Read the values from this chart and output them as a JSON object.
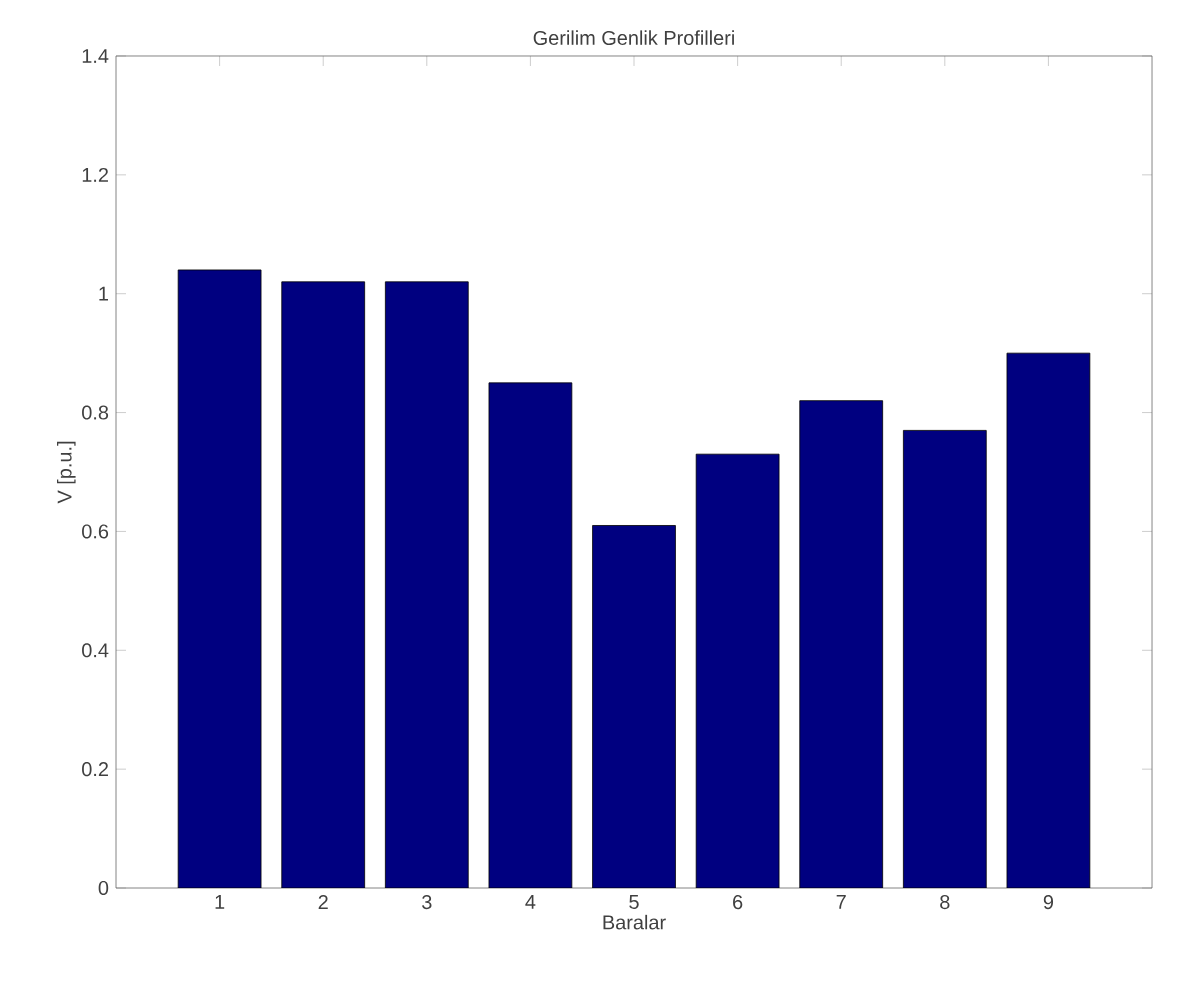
{
  "chart_data": {
    "type": "bar",
    "title": "Gerilim Genlik Profilleri",
    "xlabel": "Baralar",
    "ylabel": "V [p.u.]",
    "categories": [
      "1",
      "2",
      "3",
      "4",
      "5",
      "6",
      "7",
      "8",
      "9"
    ],
    "values": [
      1.04,
      1.02,
      1.02,
      0.85,
      0.61,
      0.73,
      0.82,
      0.77,
      0.9
    ],
    "color": "#000080",
    "ylim": [
      0,
      1.4
    ],
    "yticks": [
      0,
      0.2,
      0.4,
      0.6,
      0.8,
      1,
      1.2,
      1.4
    ],
    "grid": false
  }
}
